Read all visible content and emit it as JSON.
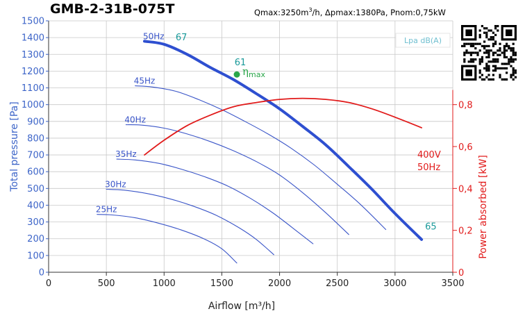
{
  "header": {
    "title": "GMB-2-31B-075T",
    "spec_prefix": "Qmax:3250m",
    "spec_sup": "3",
    "spec_suffix": "/h, Δpmax:1380Pa, Pnom:0,75kW"
  },
  "colors": {
    "pressure_axis": "#3c64c8",
    "power_axis": "#e11a1a",
    "fan_curve": "#3a55c8",
    "max_curve": "#2e4fd0",
    "noise_label": "#1a9a9a",
    "efficiency": "#2aa64a",
    "grid": "#c8c8c8"
  },
  "chart_data": {
    "type": "line",
    "title": "GMB-2-31B-075T",
    "xlabel": "Airflow [m³/h]",
    "ylabel_left": "Total pressure [Pa]",
    "ylabel_right": "Power absorbed [kW]",
    "xlim": [
      0,
      3500
    ],
    "ylim_left": [
      0,
      1500
    ],
    "ylim_right": [
      0,
      1.2
    ],
    "x_ticks": [
      0,
      500,
      1000,
      1500,
      2000,
      2500,
      3000,
      3500
    ],
    "y_left_ticks": [
      0,
      100,
      200,
      300,
      400,
      500,
      600,
      700,
      800,
      900,
      1000,
      1100,
      1200,
      1300,
      1400,
      1500
    ],
    "y_right_ticks": [
      {
        "value": 0,
        "label": "0"
      },
      {
        "value": 0.2,
        "label": "0,2"
      },
      {
        "value": 0.4,
        "label": "0,4"
      },
      {
        "value": 0.6,
        "label": "0,6"
      },
      {
        "value": 0.8,
        "label": "0,8"
      }
    ],
    "grid": true,
    "legend_box": "Lpa dB(A)",
    "series": [
      {
        "name": "50Hz",
        "axis": "left",
        "max": true,
        "points": [
          [
            830,
            1378
          ],
          [
            1000,
            1360
          ],
          [
            1200,
            1300
          ],
          [
            1400,
            1222
          ],
          [
            1600,
            1150
          ],
          [
            1800,
            1065
          ],
          [
            2000,
            975
          ],
          [
            2200,
            870
          ],
          [
            2400,
            760
          ],
          [
            2600,
            630
          ],
          [
            2800,
            495
          ],
          [
            3000,
            350
          ],
          [
            3230,
            195
          ]
        ]
      },
      {
        "name": "45Hz",
        "axis": "left",
        "points": [
          [
            750,
            1112
          ],
          [
            900,
            1105
          ],
          [
            1100,
            1080
          ],
          [
            1300,
            1030
          ],
          [
            1500,
            970
          ],
          [
            1700,
            900
          ],
          [
            1900,
            825
          ],
          [
            2100,
            740
          ],
          [
            2300,
            640
          ],
          [
            2500,
            525
          ],
          [
            2700,
            405
          ],
          [
            2920,
            255
          ]
        ]
      },
      {
        "name": "40Hz",
        "axis": "left",
        "points": [
          [
            670,
            880
          ],
          [
            800,
            878
          ],
          [
            1000,
            860
          ],
          [
            1200,
            825
          ],
          [
            1400,
            780
          ],
          [
            1600,
            725
          ],
          [
            1800,
            660
          ],
          [
            2000,
            580
          ],
          [
            2200,
            475
          ],
          [
            2400,
            355
          ],
          [
            2600,
            225
          ]
        ]
      },
      {
        "name": "35Hz",
        "axis": "left",
        "points": [
          [
            590,
            675
          ],
          [
            750,
            670
          ],
          [
            950,
            650
          ],
          [
            1150,
            615
          ],
          [
            1350,
            570
          ],
          [
            1550,
            515
          ],
          [
            1750,
            440
          ],
          [
            1950,
            350
          ],
          [
            2150,
            245
          ],
          [
            2290,
            170
          ]
        ]
      },
      {
        "name": "30Hz",
        "axis": "left",
        "points": [
          [
            500,
            495
          ],
          [
            650,
            490
          ],
          [
            850,
            470
          ],
          [
            1050,
            438
          ],
          [
            1250,
            395
          ],
          [
            1450,
            340
          ],
          [
            1650,
            265
          ],
          [
            1800,
            195
          ],
          [
            1950,
            105
          ]
        ]
      },
      {
        "name": "25Hz",
        "axis": "left",
        "points": [
          [
            420,
            345
          ],
          [
            550,
            342
          ],
          [
            750,
            325
          ],
          [
            950,
            293
          ],
          [
            1150,
            252
          ],
          [
            1350,
            198
          ],
          [
            1500,
            140
          ],
          [
            1630,
            55
          ]
        ]
      },
      {
        "name": "400V 50Hz",
        "axis": "right",
        "points": [
          [
            830,
            0.56
          ],
          [
            1000,
            0.63
          ],
          [
            1200,
            0.7
          ],
          [
            1400,
            0.75
          ],
          [
            1600,
            0.79
          ],
          [
            1800,
            0.81
          ],
          [
            2000,
            0.825
          ],
          [
            2200,
            0.83
          ],
          [
            2400,
            0.825
          ],
          [
            2600,
            0.81
          ],
          [
            2800,
            0.78
          ],
          [
            3000,
            0.74
          ],
          [
            3230,
            0.69
          ]
        ]
      }
    ],
    "noise_labels": [
      {
        "text": "67",
        "x": 1100,
        "y": 1385
      },
      {
        "text": "61",
        "x": 1610,
        "y": 1235
      },
      {
        "text": "65",
        "x": 3260,
        "y": 255
      }
    ],
    "efficiency_point": {
      "label": "η",
      "sub": "max",
      "x": 1630,
      "y": 1180
    },
    "power_label_lines": [
      "400V",
      "50Hz"
    ]
  }
}
